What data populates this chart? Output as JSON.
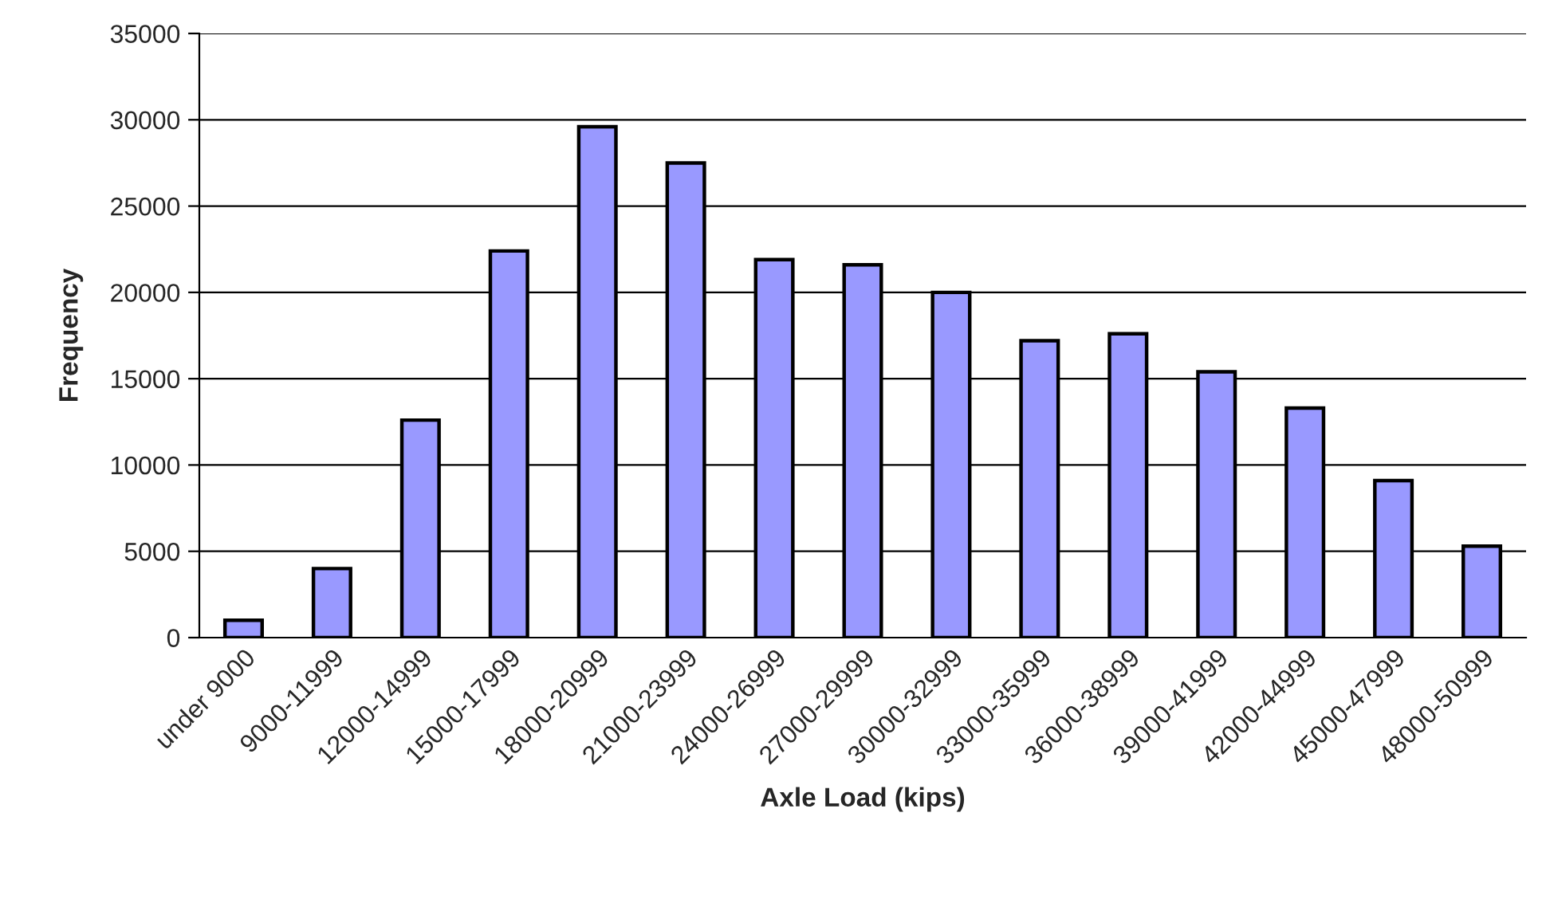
{
  "chart_data": {
    "type": "bar",
    "xlabel": "Axle Load (kips)",
    "ylabel": "Frequency",
    "categories": [
      "under 9000",
      "9000-11999",
      "12000-14999",
      "15000-17999",
      "18000-20999",
      "21000-23999",
      "24000-26999",
      "27000-29999",
      "30000-32999",
      "33000-35999",
      "36000-38999",
      "39000-41999",
      "42000-44999",
      "45000-47999",
      "48000-50999"
    ],
    "values": [
      1000,
      4000,
      12600,
      22400,
      29600,
      27500,
      21900,
      21600,
      20000,
      17200,
      17600,
      15400,
      13300,
      9100,
      5300
    ],
    "color": "#9999ff",
    "ylim": [
      0,
      35000
    ],
    "yticks": [
      0,
      5000,
      10000,
      15000,
      20000,
      25000,
      30000,
      35000
    ],
    "grid": "y",
    "legend": false
  }
}
